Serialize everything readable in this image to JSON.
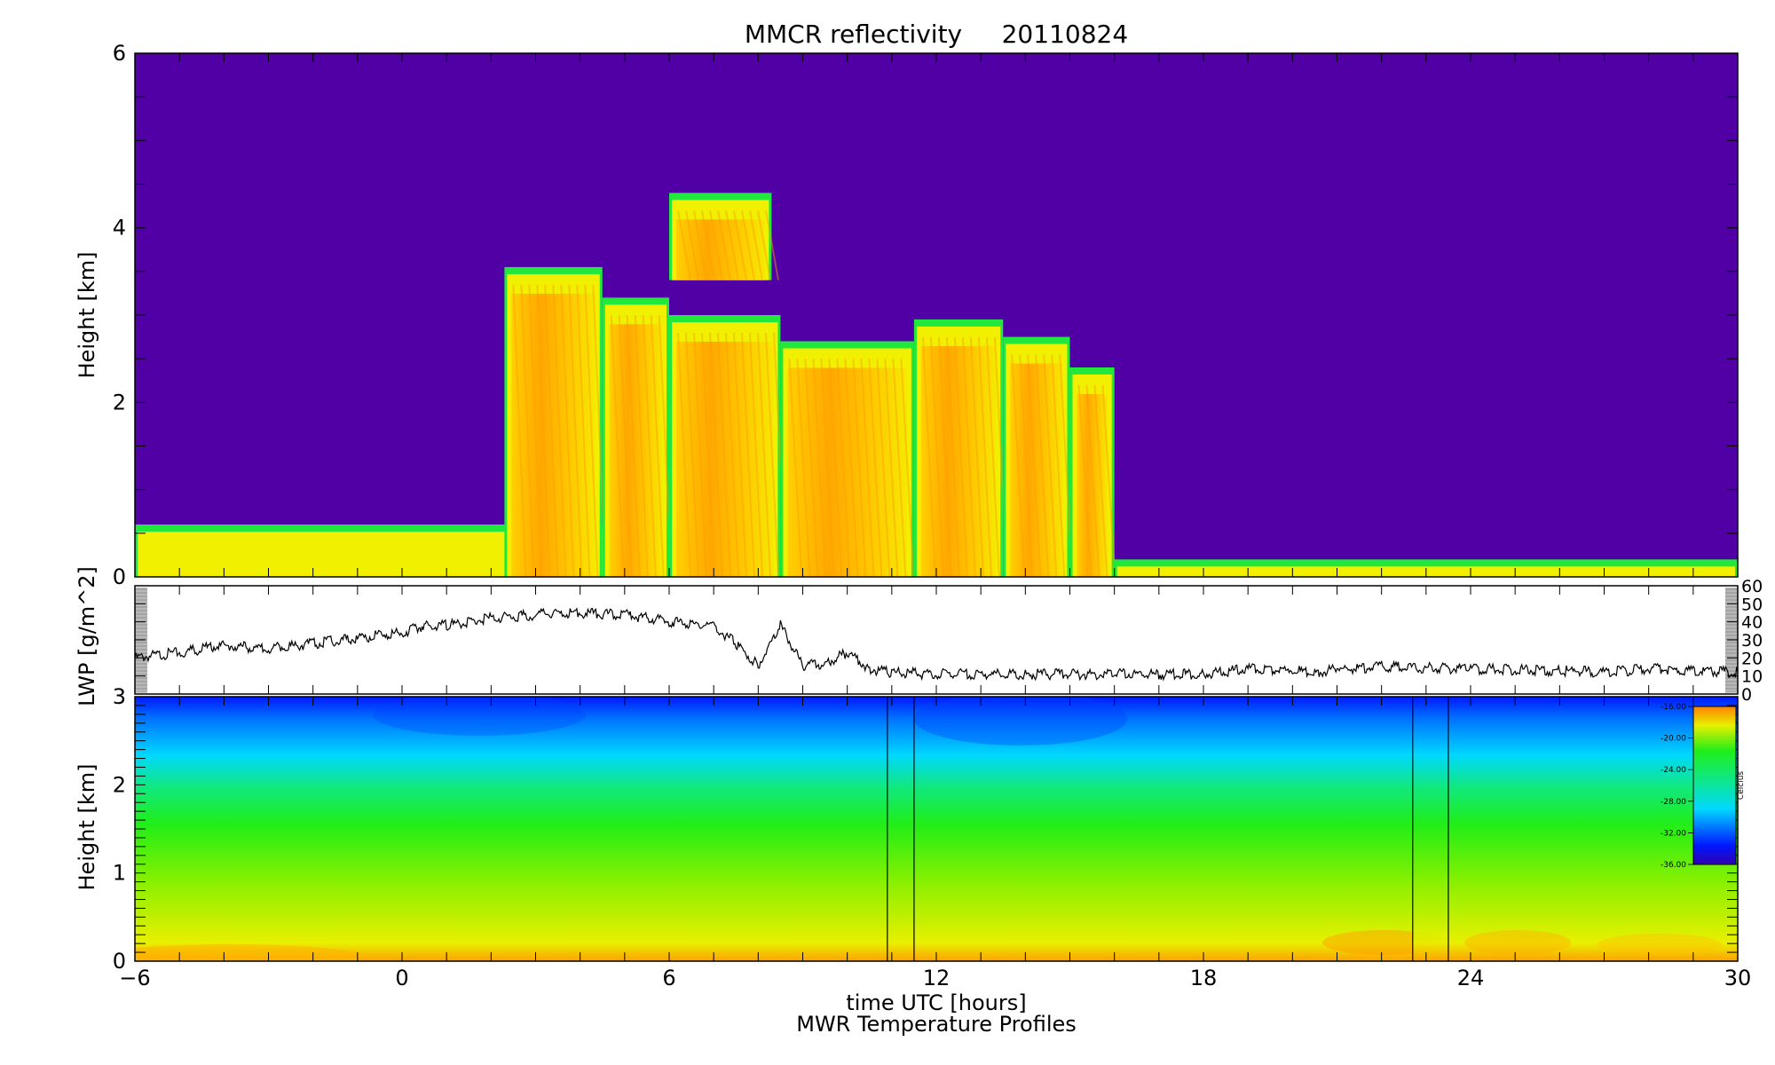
{
  "title": "MMCR reflectivity     20110824",
  "colors": {
    "background_purple": "#5000a4",
    "echo_green": "#21e83c",
    "echo_yellow": "#f0f000",
    "echo_gold": "#ffc800",
    "echo_orange": "#ff9c00",
    "mwr_cold": "#0018ff",
    "mwr_cyan": "#00d8ff",
    "mwr_green": "#20ee18",
    "mwr_yellow": "#e8f000",
    "mwr_orange": "#ffa000",
    "lwp_line": "#000000"
  },
  "chart_data": [
    {
      "type": "heatmap",
      "title": "MMCR reflectivity     20110824",
      "xlabel": "",
      "ylabel": "Height [km]",
      "xlim": [
        -6,
        30
      ],
      "ylim": [
        0,
        6
      ],
      "yticks": [
        "0",
        "2",
        "4",
        "6"
      ],
      "grid": false,
      "echo_regions": [
        {
          "x_start": -6,
          "x_end": 7.0,
          "top_km": 0.6
        },
        {
          "x_start": 2.3,
          "x_end": 4.5,
          "top_km": 3.55
        },
        {
          "x_start": 4.5,
          "x_end": 6.0,
          "top_km": 3.2
        },
        {
          "x_start": 6.0,
          "x_end": 8.5,
          "top_km": 3.0
        },
        {
          "x_start": 6.0,
          "x_end": 8.3,
          "base_km": 3.4,
          "top_km": 4.4
        },
        {
          "x_start": 8.5,
          "x_end": 11.5,
          "top_km": 2.7
        },
        {
          "x_start": 11.5,
          "x_end": 13.5,
          "top_km": 2.95
        },
        {
          "x_start": 13.5,
          "x_end": 15.0,
          "top_km": 2.75
        },
        {
          "x_start": 15.0,
          "x_end": 16.0,
          "top_km": 2.4
        },
        {
          "x_start": 16.0,
          "x_end": 30,
          "top_km": 0.2
        }
      ]
    },
    {
      "type": "line",
      "ylabel": "LWP [g/m^2]",
      "xlim": [
        -6,
        30
      ],
      "ylim": [
        0,
        60
      ],
      "yticks_right": [
        "0",
        "10",
        "20",
        "30",
        "40",
        "50",
        "60"
      ],
      "grid": false,
      "series": [
        {
          "x": [
            -6,
            -5,
            -4,
            -3,
            -2,
            -1,
            0,
            0.5,
            1,
            2,
            3,
            4,
            5,
            6,
            7,
            7.5,
            8,
            8.5,
            9,
            9.5,
            10,
            10.5,
            11,
            12,
            14,
            16,
            18,
            19,
            20,
            20.5,
            21,
            22,
            24,
            26,
            27,
            28,
            29,
            30
          ],
          "y": [
            20,
            23,
            27,
            25,
            28,
            31,
            34,
            38,
            38,
            42,
            44,
            45,
            44,
            40,
            38,
            28,
            16,
            38,
            16,
            17,
            23,
            14,
            12,
            11,
            11,
            11,
            11,
            14,
            13,
            12,
            14,
            15,
            14,
            13,
            12,
            14,
            13,
            12
          ]
        }
      ]
    },
    {
      "type": "heatmap",
      "title": "MWR Temperature Profiles",
      "xlabel": "time UTC [hours]",
      "ylabel": "Height [km]",
      "xlim": [
        -6,
        30
      ],
      "ylim": [
        0,
        3
      ],
      "xticks": [
        "-6",
        "0",
        "6",
        "12",
        "18",
        "24",
        "30"
      ],
      "yticks": [
        "0",
        "1",
        "2",
        "3"
      ],
      "grid": false,
      "missing_gaps": [
        [
          10.9,
          11.5
        ],
        [
          22.7,
          23.5
        ]
      ],
      "colorbar": {
        "label": "Celcius",
        "range": [
          -36,
          -16
        ],
        "ticks": [
          "-16.00",
          "-20.00",
          "-24.00",
          "-28.00",
          "-32.00",
          "-36.00"
        ]
      }
    }
  ]
}
